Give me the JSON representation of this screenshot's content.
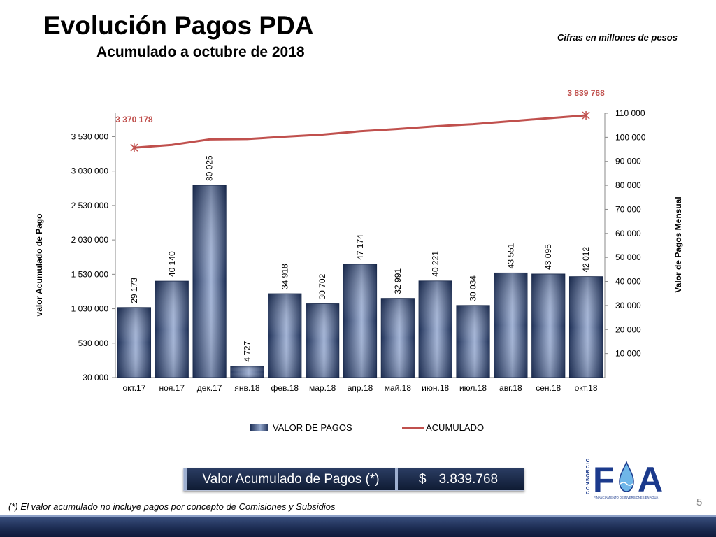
{
  "header": {
    "title": "Evolución Pagos PDA",
    "subtitle": "Acumulado a octubre de 2018",
    "note": "Cifras en millones de pesos"
  },
  "chart_data": {
    "type": "bar",
    "categories": [
      "окт.17",
      "ноя.17",
      "дек.17",
      "янв.18",
      "фев.18",
      "мар.18",
      "апр.18",
      "май.18",
      "июн.18",
      "июл.18",
      "авг.18",
      "сен.18",
      "окт.18"
    ],
    "series": [
      {
        "name": "VALOR DE PAGOS",
        "type": "bar",
        "axis": "right",
        "values": [
          29173,
          40140,
          80025,
          4727,
          34918,
          30702,
          47174,
          32991,
          40221,
          30034,
          43551,
          43095,
          42012
        ],
        "labels": [
          "29 173",
          "40 140",
          "80 025",
          "4 727",
          "34 918",
          "30 702",
          "47 174",
          "32 991",
          "40 221",
          "30 034",
          "43 551",
          "43 095",
          "42 012"
        ]
      },
      {
        "name": "ACUMULADO",
        "type": "line",
        "axis": "left",
        "values": [
          3370178,
          3410318,
          3490343,
          3495070,
          3529988,
          3560690,
          3607864,
          3640855,
          3681076,
          3711110,
          3754661,
          3797756,
          3839768
        ],
        "labels": [
          "3 370 178",
          "",
          "",
          "",
          "",
          "",
          "",
          "",
          "",
          "",
          "",
          "",
          "3 839 768"
        ]
      }
    ],
    "ylabel_left": "valor  Acumulado de Pago",
    "ylabel_right": "Valor de Pagos Mensual",
    "ylim_left": [
      30000,
      3870000
    ],
    "ylim_right": [
      0,
      110000
    ],
    "yticks_left": [
      "30 000",
      "530 000",
      "1 030 000",
      "1 530 000",
      "2 030 000",
      "2 530 000",
      "3 030 000",
      "3 530 000"
    ],
    "yticks_right": [
      "10 000",
      "20 000",
      "30 000",
      "40 000",
      "50 000",
      "60 000",
      "70 000",
      "80 000",
      "90 000",
      "100 000",
      "110 000"
    ],
    "legend_position": "bottom",
    "grid": false,
    "colors": {
      "bar_dark": "#1f3158",
      "bar_light": "#a3b4d6",
      "line": "#c0504d",
      "label_red": "#c0504d"
    }
  },
  "legend": {
    "bar_label": "VALOR DE PAGOS",
    "line_label": "ACUMULADO"
  },
  "summary": {
    "label": "Valor Acumulado de Pagos (*)",
    "currency": "$",
    "value": "3.839.768"
  },
  "footnote": "(*) El valor acumulado no incluye  pagos por concepto de Comisiones y Subsidios",
  "page_number": "5",
  "logo": {
    "vertical_text": "CONSORCIO",
    "letters": [
      "F",
      "A"
    ],
    "tagline": "FINANCIAMIENTO DE INVERSIONES EN AGUA",
    "colors": {
      "navy": "#1b3a8c",
      "drop": "#6fb6e8"
    }
  }
}
